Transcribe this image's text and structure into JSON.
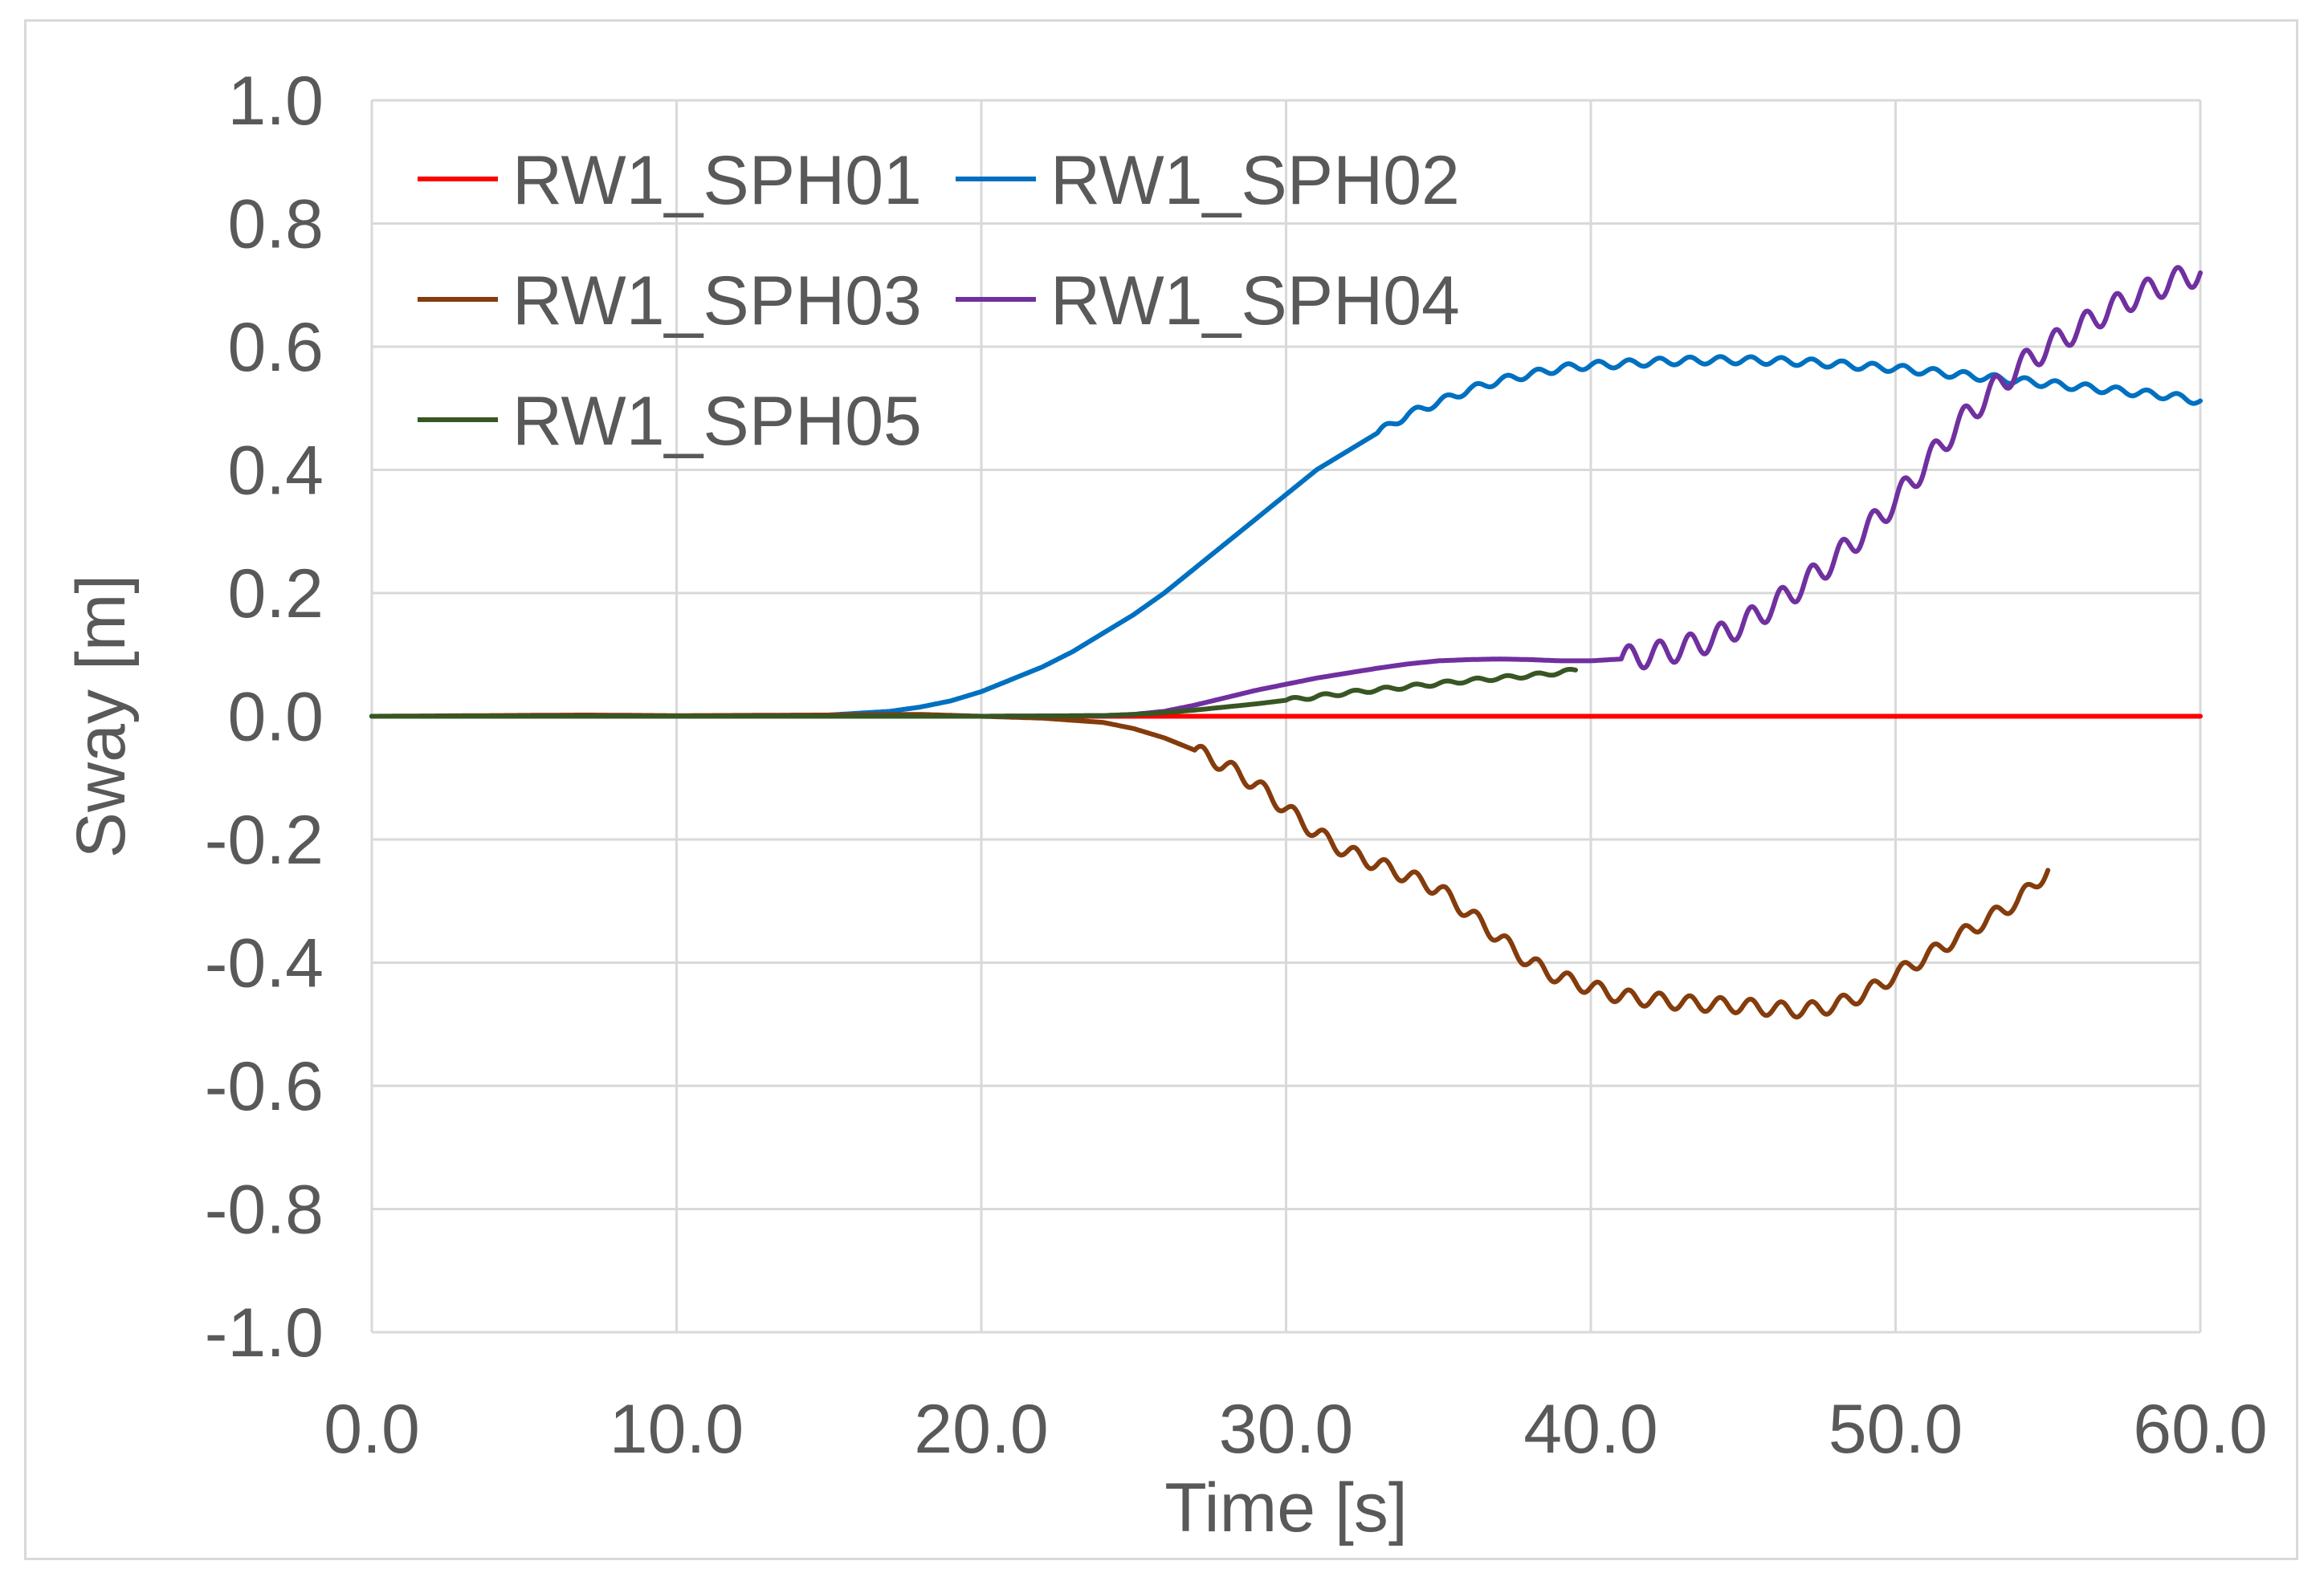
{
  "chart_data": {
    "type": "line",
    "title": "",
    "xlabel": "Time [s]",
    "ylabel": "Sway [m]",
    "xlim": [
      0,
      60
    ],
    "ylim": [
      -1.0,
      1.0
    ],
    "x_ticks": [
      0,
      10,
      20,
      30,
      40,
      50,
      60
    ],
    "x_tick_labels": [
      "0.0",
      "10.0",
      "20.0",
      "30.0",
      "40.0",
      "50.0",
      "60.0"
    ],
    "y_ticks": [
      1.0,
      0.8,
      0.6,
      0.4,
      0.2,
      0.0,
      -0.2,
      -0.4,
      -0.6,
      -0.8,
      -1.0
    ],
    "y_tick_labels": [
      "1.0",
      "0.8",
      "0.6",
      "0.4",
      "0.2",
      "0.0",
      "-0.2",
      "-0.4",
      "-0.6",
      "-0.8",
      "-1.0"
    ],
    "grid": true,
    "legend_position": "top-left",
    "series": [
      {
        "name": "RW1_SPH01",
        "color": "#ff0000",
        "points": [
          [
            0,
            0.0
          ],
          [
            60,
            0.0
          ]
        ]
      },
      {
        "name": "RW1_SPH02",
        "color": "#0070c0",
        "points": [
          [
            0,
            0.0
          ],
          [
            10,
            0.0
          ],
          [
            15,
            0.002
          ],
          [
            17,
            0.008
          ],
          [
            18,
            0.015
          ],
          [
            19,
            0.025
          ],
          [
            20,
            0.04
          ],
          [
            21,
            0.06
          ],
          [
            22,
            0.08
          ],
          [
            23,
            0.105
          ],
          [
            24,
            0.135
          ],
          [
            25,
            0.165
          ],
          [
            26,
            0.2
          ],
          [
            27,
            0.24
          ],
          [
            28,
            0.28
          ],
          [
            29,
            0.32
          ],
          [
            30,
            0.36
          ],
          [
            31,
            0.4
          ],
          [
            32,
            0.43
          ],
          [
            33,
            0.46
          ],
          [
            34,
            0.49
          ],
          [
            35,
            0.51
          ],
          [
            36,
            0.53
          ],
          [
            37,
            0.545
          ],
          [
            38,
            0.555
          ],
          [
            39,
            0.565
          ],
          [
            40,
            0.57
          ],
          [
            41,
            0.572
          ],
          [
            42,
            0.575
          ],
          [
            43,
            0.577
          ],
          [
            44,
            0.578
          ],
          [
            45,
            0.578
          ],
          [
            46,
            0.577
          ],
          [
            47,
            0.575
          ],
          [
            48,
            0.572
          ],
          [
            49,
            0.568
          ],
          [
            50,
            0.565
          ],
          [
            51,
            0.56
          ],
          [
            52,
            0.555
          ],
          [
            53,
            0.55
          ],
          [
            54,
            0.545
          ],
          [
            55,
            0.54
          ],
          [
            56,
            0.535
          ],
          [
            57,
            0.53
          ],
          [
            58,
            0.525
          ],
          [
            59,
            0.52
          ],
          [
            60,
            0.512
          ]
        ],
        "oscillation": {
          "amplitude": 0.006,
          "period_s": 1.0,
          "start": 33,
          "end": 60
        }
      },
      {
        "name": "RW1_SPH03",
        "color": "#843c0c",
        "points": [
          [
            0,
            0.0
          ],
          [
            7,
            0.002
          ],
          [
            10,
            0.001
          ],
          [
            15,
            0.002
          ],
          [
            18,
            0.003
          ],
          [
            20,
            0.0
          ],
          [
            22,
            -0.003
          ],
          [
            24,
            -0.01
          ],
          [
            25,
            -0.02
          ],
          [
            26,
            -0.035
          ],
          [
            27,
            -0.055
          ],
          [
            28,
            -0.08
          ],
          [
            29,
            -0.11
          ],
          [
            30,
            -0.15
          ],
          [
            31,
            -0.19
          ],
          [
            32,
            -0.22
          ],
          [
            33,
            -0.24
          ],
          [
            34,
            -0.26
          ],
          [
            35,
            -0.28
          ],
          [
            36,
            -0.32
          ],
          [
            37,
            -0.36
          ],
          [
            38,
            -0.4
          ],
          [
            39,
            -0.425
          ],
          [
            40,
            -0.44
          ],
          [
            41,
            -0.455
          ],
          [
            42,
            -0.46
          ],
          [
            43,
            -0.465
          ],
          [
            44,
            -0.468
          ],
          [
            45,
            -0.47
          ],
          [
            46,
            -0.475
          ],
          [
            47,
            -0.477
          ],
          [
            48,
            -0.47
          ],
          [
            49,
            -0.45
          ],
          [
            50,
            -0.42
          ],
          [
            51,
            -0.39
          ],
          [
            52,
            -0.36
          ],
          [
            53,
            -0.33
          ],
          [
            54,
            -0.3
          ],
          [
            55,
            -0.25
          ]
        ],
        "oscillation": {
          "amplitude": 0.012,
          "period_s": 1.0,
          "start": 27,
          "end": 55
        }
      },
      {
        "name": "RW1_SPH04",
        "color": "#7030a0",
        "points": [
          [
            0,
            0.0
          ],
          [
            20,
            0.0
          ],
          [
            24,
            0.001
          ],
          [
            25,
            0.003
          ],
          [
            26,
            0.008
          ],
          [
            27,
            0.018
          ],
          [
            28,
            0.03
          ],
          [
            29,
            0.042
          ],
          [
            30,
            0.052
          ],
          [
            31,
            0.062
          ],
          [
            32,
            0.07
          ],
          [
            33,
            0.078
          ],
          [
            34,
            0.085
          ],
          [
            35,
            0.09
          ],
          [
            36,
            0.092
          ],
          [
            37,
            0.093
          ],
          [
            38,
            0.092
          ],
          [
            39,
            0.09
          ],
          [
            40,
            0.09
          ],
          [
            41,
            0.093
          ],
          [
            42,
            0.1
          ],
          [
            43,
            0.11
          ],
          [
            44,
            0.125
          ],
          [
            45,
            0.15
          ],
          [
            46,
            0.18
          ],
          [
            47,
            0.215
          ],
          [
            48,
            0.255
          ],
          [
            49,
            0.3
          ],
          [
            50,
            0.35
          ],
          [
            51,
            0.41
          ],
          [
            52,
            0.47
          ],
          [
            53,
            0.52
          ],
          [
            54,
            0.565
          ],
          [
            55,
            0.6
          ],
          [
            56,
            0.63
          ],
          [
            57,
            0.66
          ],
          [
            58,
            0.685
          ],
          [
            59,
            0.705
          ],
          [
            60,
            0.72
          ]
        ],
        "oscillation": {
          "amplitude": 0.02,
          "period_s": 1.0,
          "start": 41,
          "end": 60
        }
      },
      {
        "name": "RW1_SPH05",
        "color": "#375623",
        "points": [
          [
            0,
            0.0
          ],
          [
            20,
            0.0
          ],
          [
            24,
            0.001
          ],
          [
            25,
            0.003
          ],
          [
            26,
            0.006
          ],
          [
            27,
            0.01
          ],
          [
            28,
            0.015
          ],
          [
            29,
            0.02
          ],
          [
            30,
            0.026
          ],
          [
            31,
            0.032
          ],
          [
            32,
            0.038
          ],
          [
            33,
            0.043
          ],
          [
            34,
            0.048
          ],
          [
            35,
            0.053
          ],
          [
            36,
            0.058
          ],
          [
            37,
            0.062
          ],
          [
            38,
            0.066
          ],
          [
            39,
            0.071
          ],
          [
            39.5,
            0.075
          ]
        ],
        "oscillation": {
          "amplitude": 0.003,
          "period_s": 1.0,
          "start": 30,
          "end": 39.5
        }
      }
    ]
  }
}
